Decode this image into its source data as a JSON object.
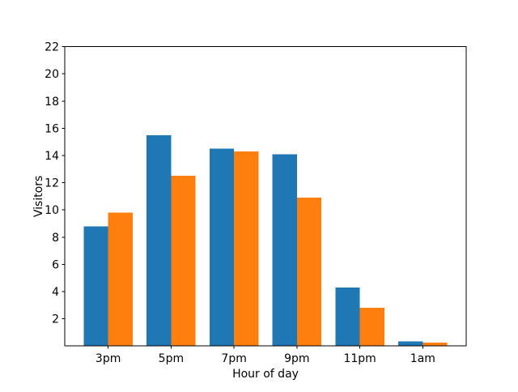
{
  "chart_data": {
    "type": "bar",
    "title": "",
    "xlabel": "Hour of day",
    "ylabel": "Visitors",
    "categories": [
      "3pm",
      "5pm",
      "7pm",
      "9pm",
      "11pm",
      "1am"
    ],
    "series": [
      {
        "color": "#1f77b4",
        "values": [
          8.8,
          15.5,
          14.5,
          14.1,
          4.3,
          0.35
        ]
      },
      {
        "color": "#ff7f0e",
        "values": [
          9.8,
          12.5,
          14.3,
          10.9,
          2.8,
          0.25
        ]
      }
    ],
    "ylim": [
      0,
      22
    ],
    "yticks": [
      2,
      4,
      6,
      8,
      10,
      12,
      14,
      16,
      18,
      20,
      22
    ],
    "grid": false,
    "legend": null,
    "axis_color": "#000000",
    "background_color": "#ffffff"
  }
}
